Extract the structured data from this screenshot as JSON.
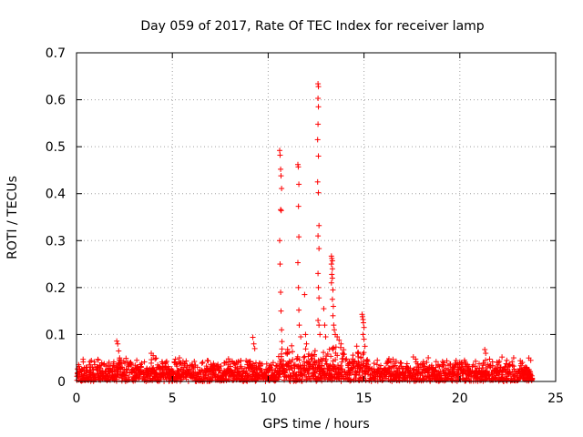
{
  "chart_data": {
    "type": "scatter",
    "title": "Day 059 of 2017, Rate Of TEC Index for receiver lamp",
    "xlabel": "GPS time / hours",
    "ylabel": "ROTI / TECUs",
    "xlim": [
      0,
      25
    ],
    "ylim": [
      0,
      0.7
    ],
    "x_ticks": [
      0,
      5,
      10,
      15,
      20,
      25
    ],
    "x_tick_labels": [
      "0",
      "5",
      "10",
      "15",
      "20",
      "25"
    ],
    "y_ticks": [
      0,
      0.1,
      0.2,
      0.3,
      0.4,
      0.5,
      0.6,
      0.7
    ],
    "y_tick_labels": [
      "0",
      "0.1",
      "0.2",
      "0.3",
      "0.4",
      "0.5",
      "0.6",
      "0.7"
    ],
    "grid": true,
    "marker": "+",
    "color": "#ff0000",
    "baseline": {
      "x_range": [
        0,
        23.8
      ],
      "typical_max": 0.035
    },
    "series": [
      {
        "name": "ROTI",
        "points": [
          [
            2.1,
            0.086
          ],
          [
            2.15,
            0.08
          ],
          [
            2.2,
            0.065
          ],
          [
            2.25,
            0.05
          ],
          [
            3.9,
            0.06
          ],
          [
            4.0,
            0.055
          ],
          [
            4.1,
            0.048
          ],
          [
            9.2,
            0.094
          ],
          [
            9.25,
            0.08
          ],
          [
            9.3,
            0.07
          ],
          [
            10.6,
            0.492
          ],
          [
            10.62,
            0.482
          ],
          [
            10.65,
            0.452
          ],
          [
            10.67,
            0.438
          ],
          [
            10.7,
            0.411
          ],
          [
            10.65,
            0.366
          ],
          [
            10.68,
            0.364
          ],
          [
            10.6,
            0.3
          ],
          [
            10.62,
            0.25
          ],
          [
            10.65,
            0.19
          ],
          [
            10.67,
            0.15
          ],
          [
            10.7,
            0.11
          ],
          [
            10.72,
            0.085
          ],
          [
            11.55,
            0.462
          ],
          [
            11.57,
            0.457
          ],
          [
            11.6,
            0.42
          ],
          [
            11.58,
            0.373
          ],
          [
            11.6,
            0.308
          ],
          [
            11.55,
            0.253
          ],
          [
            11.58,
            0.2
          ],
          [
            11.6,
            0.152
          ],
          [
            11.62,
            0.12
          ],
          [
            11.7,
            0.095
          ],
          [
            11.9,
            0.185
          ],
          [
            11.95,
            0.1
          ],
          [
            12.0,
            0.08
          ],
          [
            12.6,
            0.634
          ],
          [
            12.62,
            0.628
          ],
          [
            12.6,
            0.603
          ],
          [
            12.62,
            0.585
          ],
          [
            12.6,
            0.548
          ],
          [
            12.58,
            0.515
          ],
          [
            12.62,
            0.48
          ],
          [
            12.58,
            0.425
          ],
          [
            12.62,
            0.402
          ],
          [
            12.65,
            0.332
          ],
          [
            12.6,
            0.31
          ],
          [
            12.65,
            0.283
          ],
          [
            12.6,
            0.23
          ],
          [
            12.62,
            0.2
          ],
          [
            12.65,
            0.178
          ],
          [
            12.6,
            0.13
          ],
          [
            12.65,
            0.12
          ],
          [
            12.7,
            0.1
          ],
          [
            12.9,
            0.155
          ],
          [
            12.95,
            0.12
          ],
          [
            13.0,
            0.095
          ],
          [
            13.3,
            0.267
          ],
          [
            13.32,
            0.262
          ],
          [
            13.35,
            0.257
          ],
          [
            13.3,
            0.25
          ],
          [
            13.35,
            0.24
          ],
          [
            13.32,
            0.228
          ],
          [
            13.35,
            0.22
          ],
          [
            13.3,
            0.21
          ],
          [
            13.38,
            0.195
          ],
          [
            13.35,
            0.175
          ],
          [
            13.4,
            0.16
          ],
          [
            13.38,
            0.14
          ],
          [
            13.42,
            0.12
          ],
          [
            13.45,
            0.11
          ],
          [
            13.5,
            0.1
          ],
          [
            13.6,
            0.095
          ],
          [
            13.7,
            0.088
          ],
          [
            13.8,
            0.08
          ],
          [
            14.9,
            0.143
          ],
          [
            14.92,
            0.138
          ],
          [
            14.95,
            0.132
          ],
          [
            14.97,
            0.125
          ],
          [
            15.0,
            0.115
          ],
          [
            14.95,
            0.1
          ],
          [
            15.0,
            0.09
          ],
          [
            15.05,
            0.075
          ],
          [
            21.3,
            0.068
          ],
          [
            21.35,
            0.06
          ],
          [
            22.2,
            0.052
          ],
          [
            23.6,
            0.05
          ],
          [
            23.7,
            0.045
          ]
        ]
      }
    ]
  }
}
